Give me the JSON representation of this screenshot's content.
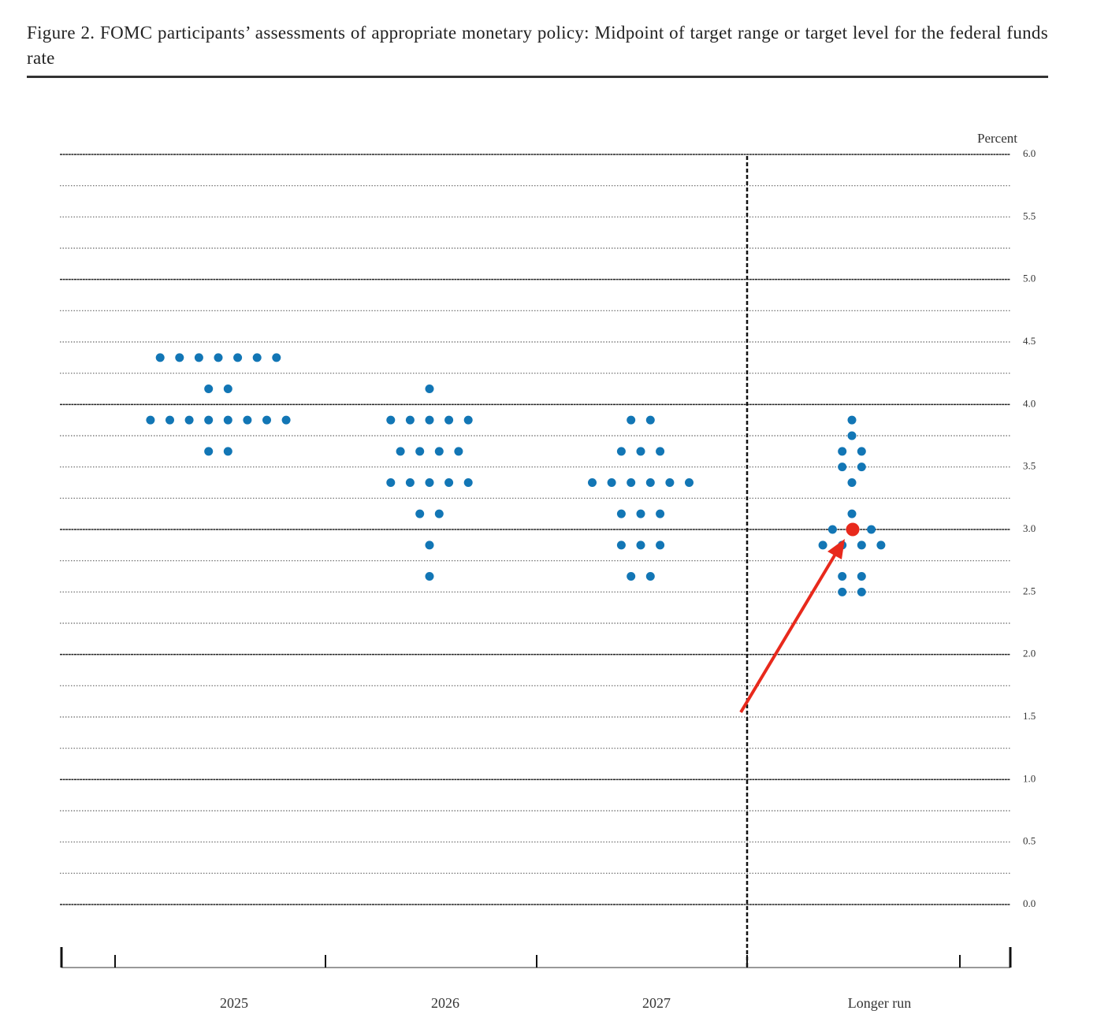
{
  "chart_data": {
    "type": "dot",
    "title": "Figure 2.  FOMC participants’ assessments of appropriate monetary policy: Midpoint of target range or target level for the federal funds rate",
    "y_label": "Percent",
    "categories": [
      "2025",
      "2026",
      "2027",
      "Longer run"
    ],
    "values": [
      [
        4.375,
        4.375,
        4.375,
        4.375,
        4.375,
        4.375,
        4.375,
        4.125,
        4.125,
        3.875,
        3.875,
        3.875,
        3.875,
        3.875,
        3.875,
        3.875,
        3.875,
        3.625,
        3.625
      ],
      [
        4.125,
        3.875,
        3.875,
        3.875,
        3.875,
        3.875,
        3.625,
        3.625,
        3.625,
        3.625,
        3.375,
        3.375,
        3.375,
        3.375,
        3.375,
        3.125,
        3.125,
        2.875,
        2.625
      ],
      [
        3.875,
        3.875,
        3.625,
        3.625,
        3.625,
        3.375,
        3.375,
        3.375,
        3.375,
        3.375,
        3.375,
        3.125,
        3.125,
        3.125,
        2.875,
        2.875,
        2.875,
        2.625,
        2.625
      ],
      [
        3.875,
        3.75,
        3.625,
        3.625,
        3.5,
        3.5,
        3.375,
        3.125,
        3.0,
        3.0,
        3.0,
        2.875,
        2.875,
        2.875,
        2.875,
        2.625,
        2.625,
        2.5,
        2.5
      ]
    ],
    "color": "#1276b5",
    "ylim": [
      0,
      6
    ],
    "yticks": [
      {
        "value": 0,
        "label": "0.0"
      },
      0.5,
      {
        "value": 1,
        "label": "1.0"
      },
      1.5,
      {
        "value": 2,
        "label": "2.0"
      },
      2.5,
      {
        "value": 3,
        "label": "3.0"
      },
      3.5,
      {
        "value": 4,
        "label": "4.0"
      },
      4.5,
      {
        "value": 5,
        "label": "5.0"
      },
      5.5,
      {
        "value": 6,
        "label": "6.0"
      }
    ],
    "minor_yticks": [
      0.25,
      0.75,
      1.25,
      1.75,
      2.25,
      2.75,
      3.25,
      3.75,
      4.25,
      4.75,
      5.25,
      5.75
    ],
    "grid": true
  }
}
